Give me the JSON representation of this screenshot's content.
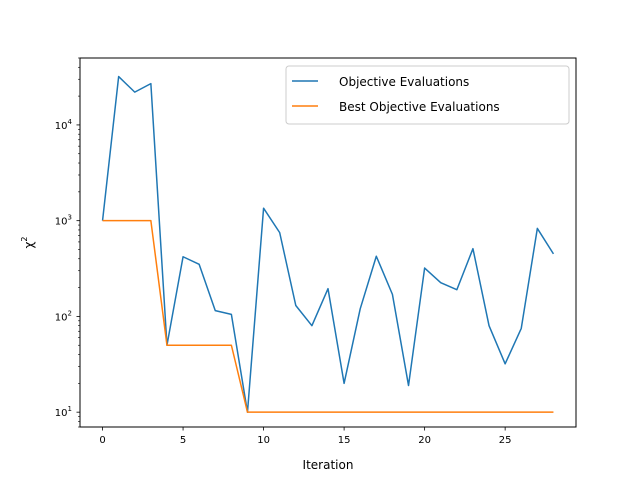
{
  "chart_data": {
    "type": "line",
    "xlabel": "Iteration",
    "ylabel": "χ",
    "ylabel_superscript": "2",
    "yscale": "log",
    "xlim": [
      -1.4,
      29.4
    ],
    "ylim": [
      7.0,
      50000
    ],
    "xticks": [
      0,
      5,
      10,
      15,
      20,
      25
    ],
    "xtick_labels": [
      "0",
      "5",
      "10",
      "15",
      "20",
      "25"
    ],
    "yticks": [
      10,
      100,
      1000,
      10000
    ],
    "ytick_labels": [
      {
        "base": "10",
        "exp": "1"
      },
      {
        "base": "10",
        "exp": "2"
      },
      {
        "base": "10",
        "exp": "3"
      },
      {
        "base": "10",
        "exp": "4"
      }
    ],
    "grid": false,
    "legend_position": "top-right",
    "x": [
      0,
      1,
      2,
      3,
      4,
      5,
      6,
      7,
      8,
      9,
      10,
      11,
      12,
      13,
      14,
      15,
      16,
      17,
      18,
      19,
      20,
      21,
      22,
      23,
      24,
      25,
      26,
      27,
      28
    ],
    "series": [
      {
        "name": "Objective Evaluations",
        "color": "#1f77b4",
        "values": [
          1000,
          32000,
          22000,
          27000,
          50,
          420,
          350,
          115,
          105,
          10,
          1350,
          750,
          130,
          80,
          195,
          20,
          120,
          425,
          170,
          19,
          320,
          225,
          190,
          510,
          80,
          32,
          75,
          830,
          450
        ]
      },
      {
        "name": "Best Objective Evaluations",
        "color": "#ff7f0e",
        "values": [
          1000,
          1000,
          1000,
          1000,
          50,
          50,
          50,
          50,
          50,
          10,
          10,
          10,
          10,
          10,
          10,
          10,
          10,
          10,
          10,
          10,
          10,
          10,
          10,
          10,
          10,
          10,
          10,
          10,
          10
        ]
      }
    ]
  }
}
